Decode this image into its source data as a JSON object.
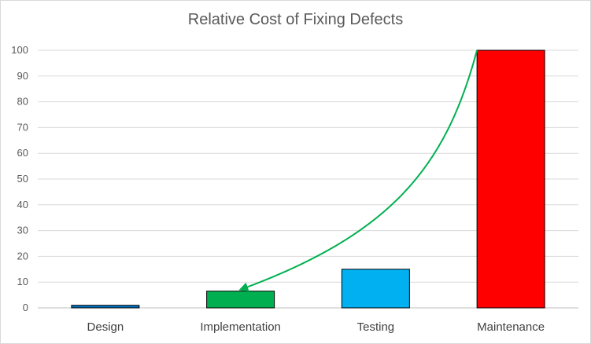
{
  "chart_data": {
    "type": "bar",
    "title": "Relative Cost of Fixing Defects",
    "xlabel": "",
    "ylabel": "",
    "categories": [
      "Design",
      "Implementation",
      "Testing",
      "Maintenance"
    ],
    "values": [
      1,
      6.5,
      15,
      100
    ],
    "colors": [
      "#0070c0",
      "#00b050",
      "#00b0f0",
      "#ff0000"
    ],
    "ylim": [
      0,
      100
    ],
    "yticks": [
      0,
      10,
      20,
      30,
      40,
      50,
      60,
      70,
      80,
      90,
      100
    ],
    "grid": true,
    "legend": "none",
    "annotation": {
      "type": "curved-arrow",
      "from": "Maintenance",
      "to": "Implementation",
      "color": "#00b050"
    }
  }
}
